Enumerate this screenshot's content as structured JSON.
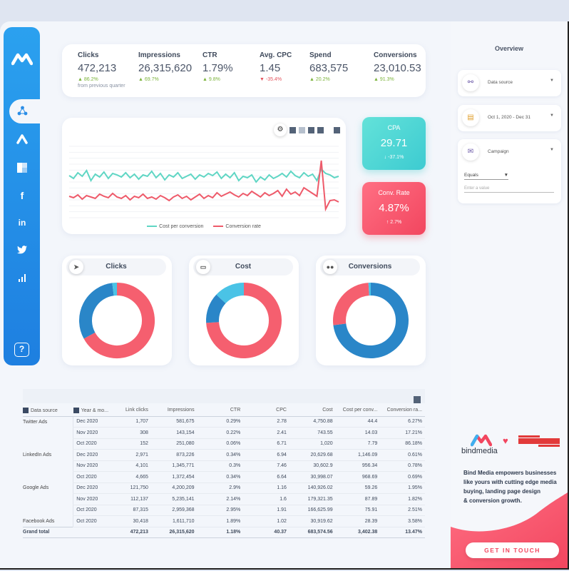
{
  "kpis": [
    {
      "label": "Clicks",
      "value": "472,213",
      "delta": "86.2%",
      "dir": "up",
      "note": "from previous quarter"
    },
    {
      "label": "Impressions",
      "value": "26,315,620",
      "delta": "69.7%",
      "dir": "up",
      "note": ""
    },
    {
      "label": "CTR",
      "value": "1.79%",
      "delta": "9.8%",
      "dir": "up",
      "note": ""
    },
    {
      "label": "Avg. CPC",
      "value": "1.45",
      "delta": "-35.4%",
      "dir": "down",
      "note": ""
    },
    {
      "label": "Spend",
      "value": "683,575",
      "delta": "20.2%",
      "dir": "up",
      "note": ""
    },
    {
      "label": "Conversions",
      "value": "23,010.53",
      "delta": "91.3%",
      "dir": "up",
      "note": ""
    }
  ],
  "line_chart": {
    "legend": [
      "Cost per conversion",
      "Conversion rate"
    ],
    "colors": [
      "#5fd6c4",
      "#ee5a6a"
    ]
  },
  "chart_data": [
    {
      "type": "line",
      "series": [
        {
          "name": "Cost per conversion",
          "values": [
            59,
            55,
            63,
            58,
            66,
            52,
            61,
            57,
            64,
            55,
            62,
            60,
            57,
            63,
            56,
            61,
            54,
            60,
            58,
            65,
            56,
            62,
            53,
            60,
            57,
            63,
            55,
            58,
            61,
            54,
            60,
            57,
            62,
            59,
            64,
            55,
            61,
            56,
            63,
            52,
            58,
            56,
            60,
            50,
            57,
            53,
            60,
            55,
            58,
            62,
            57,
            65,
            59,
            56,
            63,
            58,
            61,
            52,
            68,
            62,
            60,
            56,
            58
          ]
        },
        {
          "name": "Conversion rate",
          "values": [
            30,
            28,
            32,
            26,
            31,
            29,
            27,
            33,
            30,
            28,
            34,
            29,
            27,
            31,
            25,
            30,
            28,
            33,
            27,
            29,
            26,
            31,
            28,
            24,
            29,
            32,
            27,
            30,
            25,
            29,
            33,
            27,
            31,
            28,
            35,
            30,
            33,
            36,
            32,
            29,
            34,
            31,
            37,
            33,
            29,
            35,
            31,
            34,
            38,
            30,
            40,
            33,
            36,
            31,
            42,
            38,
            34,
            30,
            80,
            12,
            24,
            25,
            22
          ]
        }
      ]
    },
    {
      "type": "pie",
      "title": "Clicks",
      "slices": [
        {
          "label": "",
          "value": 67
        },
        {
          "label": "",
          "value": 31
        },
        {
          "label": "",
          "value": 2
        }
      ],
      "colors": [
        "#f55f6f",
        "#2a86c8",
        "#4ac3e6"
      ]
    },
    {
      "type": "pie",
      "title": "Cost",
      "slices": [
        {
          "label": "",
          "value": 74
        },
        {
          "label": "",
          "value": 13
        },
        {
          "label": "",
          "value": 13
        }
      ],
      "colors": [
        "#f55f6f",
        "#2a86c8",
        "#4ac3e6"
      ]
    },
    {
      "type": "pie",
      "title": "Conversions",
      "slices": [
        {
          "label": "",
          "value": 73
        },
        {
          "label": "",
          "value": 26
        },
        {
          "label": "",
          "value": 1
        }
      ],
      "colors": [
        "#2a86c8",
        "#f55f6f",
        "#4ac3e6"
      ]
    }
  ],
  "cpa": {
    "label": "CPA",
    "value": "29.71",
    "delta": "-37.1%"
  },
  "conv_rate": {
    "label": "Conv. Rate",
    "value": "4.87%",
    "delta": "2.7%"
  },
  "donuts": [
    {
      "title": "Clicks",
      "icon": "cursor-icon"
    },
    {
      "title": "Cost",
      "icon": "credit-card-icon"
    },
    {
      "title": "Conversions",
      "icon": "users-icon"
    }
  ],
  "table": {
    "headers": [
      "Data source",
      "Year & mo...",
      "Link clicks",
      "Impressions",
      "CTR",
      "CPC",
      "Cost",
      "Cost per conv...",
      "Conversion ra..."
    ],
    "rows": [
      [
        "Twitter Ads",
        "Dec 2020",
        "1,707",
        "581,675",
        "0.29%",
        "2.78",
        "4,750.88",
        "44.4",
        "6.27%"
      ],
      [
        "",
        "Nov 2020",
        "308",
        "143,154",
        "0.22%",
        "2.41",
        "743.55",
        "14.03",
        "17.21%"
      ],
      [
        "",
        "Oct 2020",
        "152",
        "251,080",
        "0.06%",
        "6.71",
        "1,020",
        "7.79",
        "86.18%"
      ],
      [
        "LinkedIn Ads",
        "Dec 2020",
        "2,971",
        "873,226",
        "0.34%",
        "6.94",
        "20,629.68",
        "1,146.09",
        "0.61%"
      ],
      [
        "",
        "Nov 2020",
        "4,101",
        "1,345,771",
        "0.3%",
        "7.46",
        "30,602.9",
        "956.34",
        "0.78%"
      ],
      [
        "",
        "Oct 2020",
        "4,665",
        "1,372,454",
        "0.34%",
        "6.64",
        "30,998.07",
        "968.69",
        "0.69%"
      ],
      [
        "Google Ads",
        "Dec 2020",
        "121,750",
        "4,200,209",
        "2.9%",
        "1.16",
        "140,926.02",
        "59.26",
        "1.95%"
      ],
      [
        "",
        "Nov 2020",
        "112,137",
        "5,235,141",
        "2.14%",
        "1.6",
        "179,321.35",
        "87.89",
        "1.82%"
      ],
      [
        "",
        "Oct 2020",
        "87,315",
        "2,959,368",
        "2.95%",
        "1.91",
        "166,625.99",
        "75.91",
        "2.51%"
      ],
      [
        "Facebook Ads",
        "Oct 2020",
        "30,418",
        "1,611,710",
        "1.89%",
        "1.02",
        "30,919.62",
        "28.39",
        "3.58%"
      ]
    ],
    "total": [
      "Grand total",
      "",
      "472,213",
      "26,315,620",
      "1.18%",
      "40.37",
      "683,574.56",
      "3,402.38",
      "13.47%"
    ]
  },
  "panel": {
    "title": "Overview",
    "data_source": "Data source",
    "date_range": "Oct 1, 2020 - Dec 31",
    "campaign": "Campaign",
    "equals": "Equals",
    "enter_value": "Enter a value"
  },
  "brand": {
    "name": "bindmedia",
    "desc_1": "Bind Media empowers businesses",
    "desc_2": "like yours with cutting edge media",
    "desc_3": "buying, landing page design",
    "desc_4": "& conversion growth.",
    "cta": "GET IN TOUCH"
  }
}
